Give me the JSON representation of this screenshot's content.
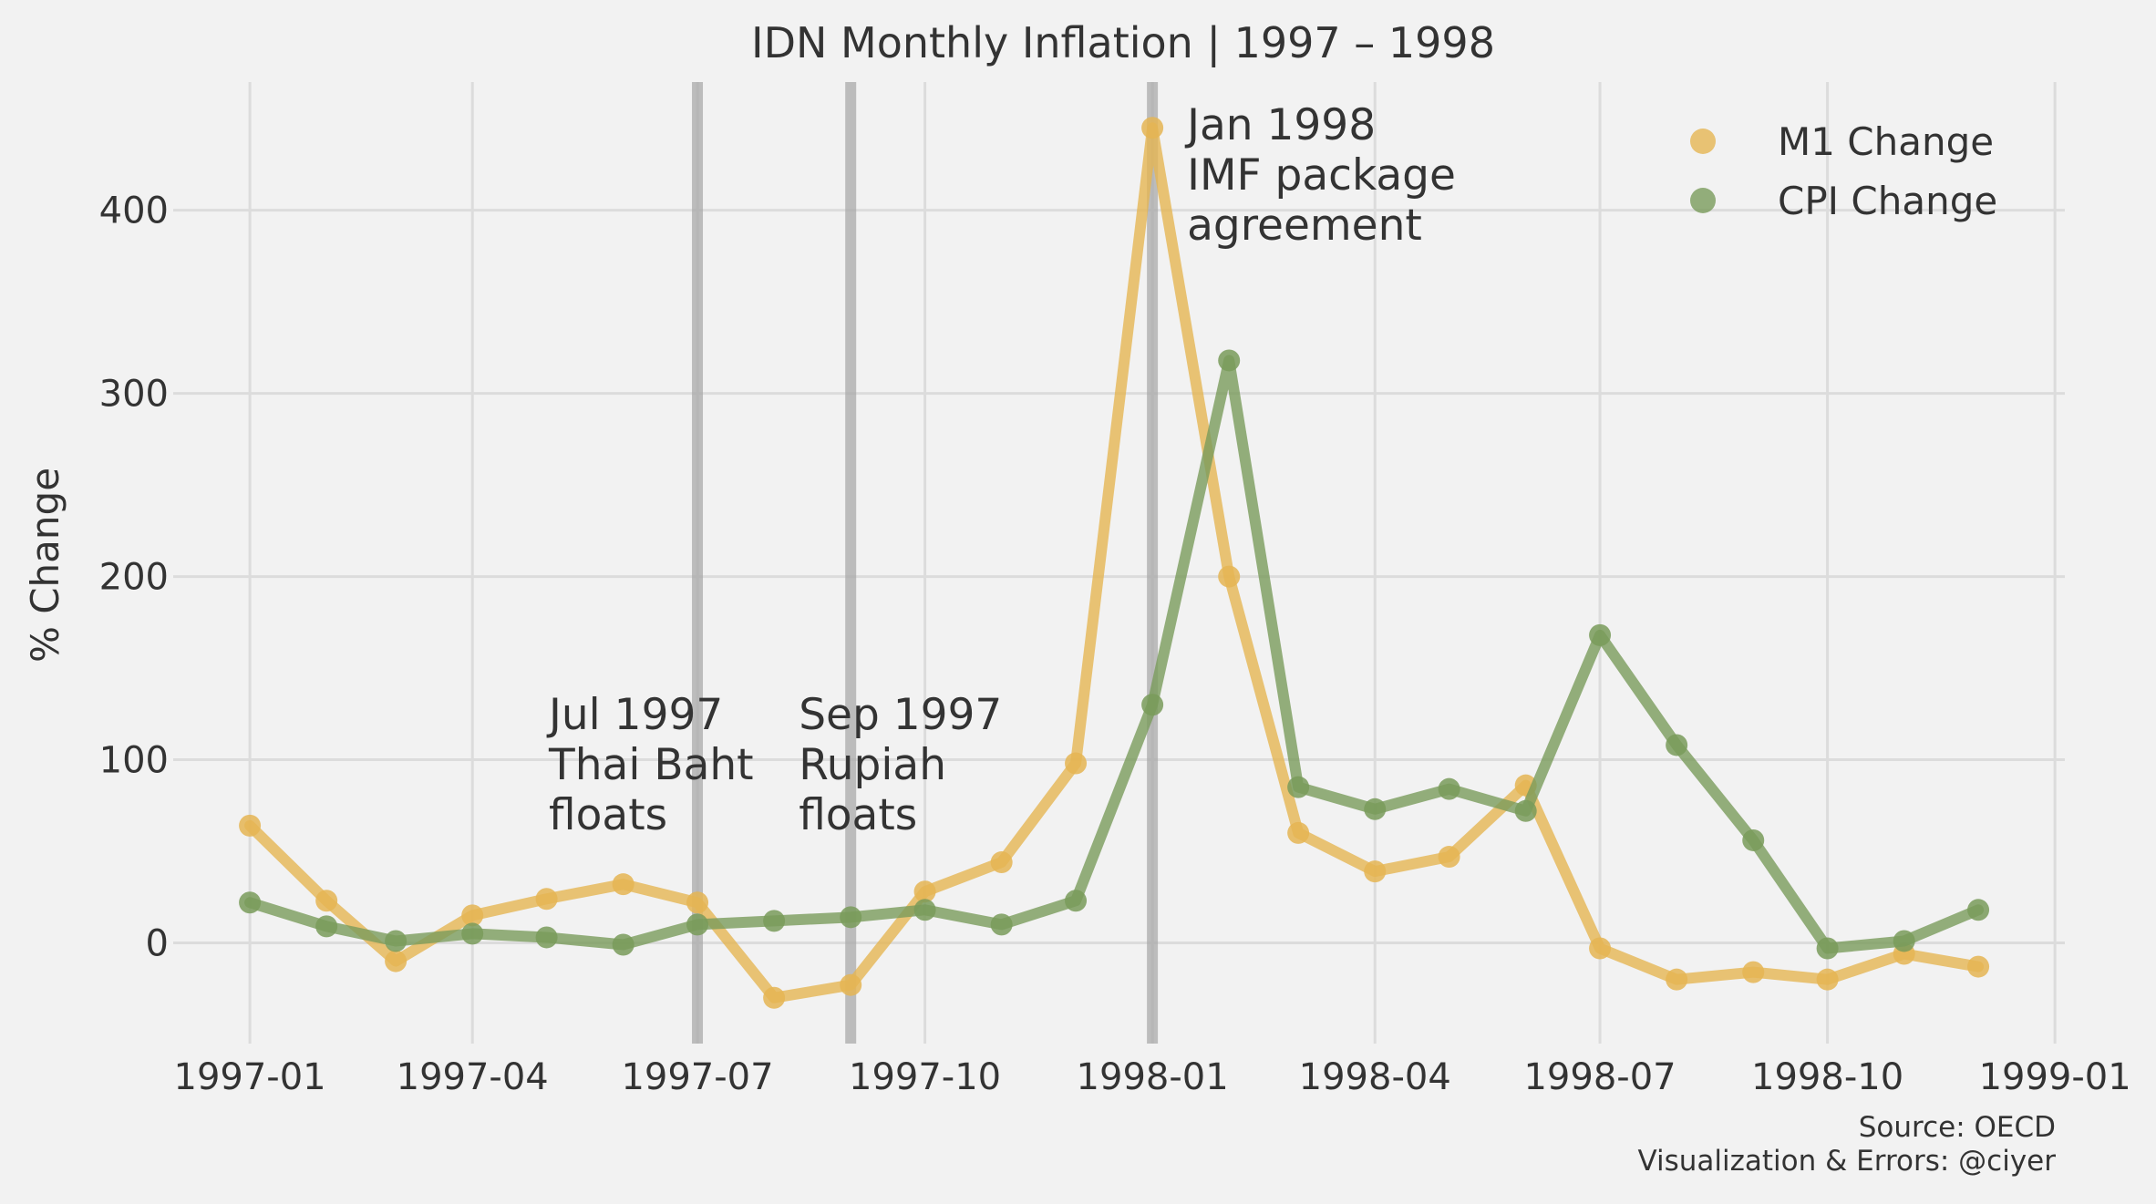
{
  "chart_data": {
    "type": "line",
    "title": "IDN Monthly Inflation | 1997 – 1998",
    "xlabel": "",
    "ylabel": "% Change",
    "x": [
      "1997-01",
      "1997-02",
      "1997-03",
      "1997-04",
      "1997-05",
      "1997-06",
      "1997-07",
      "1997-08",
      "1997-09",
      "1997-10",
      "1997-11",
      "1997-12",
      "1998-01",
      "1998-02",
      "1998-03",
      "1998-04",
      "1998-05",
      "1998-06",
      "1998-07",
      "1998-08",
      "1998-09",
      "1998-10",
      "1998-11",
      "1998-12"
    ],
    "x_ticks": [
      "1997-01",
      "1997-04",
      "1997-07",
      "1997-10",
      "1998-01",
      "1998-04",
      "1998-07",
      "1998-10",
      "1999-01"
    ],
    "y_ticks": [
      0,
      100,
      200,
      300,
      400
    ],
    "xlim": [
      "1996-12-01",
      "1999-01-05"
    ],
    "ylim": [
      -55,
      470
    ],
    "grid": true,
    "legend_position": "top-right",
    "series": [
      {
        "name": "M1 Change",
        "color": "#e5b553",
        "values": [
          64,
          23,
          -10,
          15,
          24,
          32,
          22,
          -30,
          -23,
          28,
          44,
          98,
          445,
          200,
          60,
          39,
          47,
          86,
          -3,
          -20,
          -16,
          -20,
          -6,
          -13
        ]
      },
      {
        "name": "CPI Change",
        "color": "#799b5b",
        "values": [
          22,
          9,
          1,
          5,
          3,
          -1,
          10,
          12,
          14,
          18,
          10,
          23,
          130,
          318,
          85,
          73,
          84,
          72,
          168,
          108,
          56,
          -3,
          1,
          18
        ]
      }
    ],
    "event_lines": [
      {
        "date": "1997-07-01",
        "label_lines": [
          "Jul 1997",
          "Thai Baht",
          "floats"
        ]
      },
      {
        "date": "1997-09-01",
        "label_lines": [
          "Sep 1997",
          "Rupiah",
          "floats"
        ]
      },
      {
        "date": "1998-01-01",
        "label_lines": [
          "Jan 1998",
          "IMF package",
          "agreement"
        ]
      }
    ],
    "source": [
      "Source: OECD",
      "Visualization & Errors: @ciyer"
    ]
  }
}
